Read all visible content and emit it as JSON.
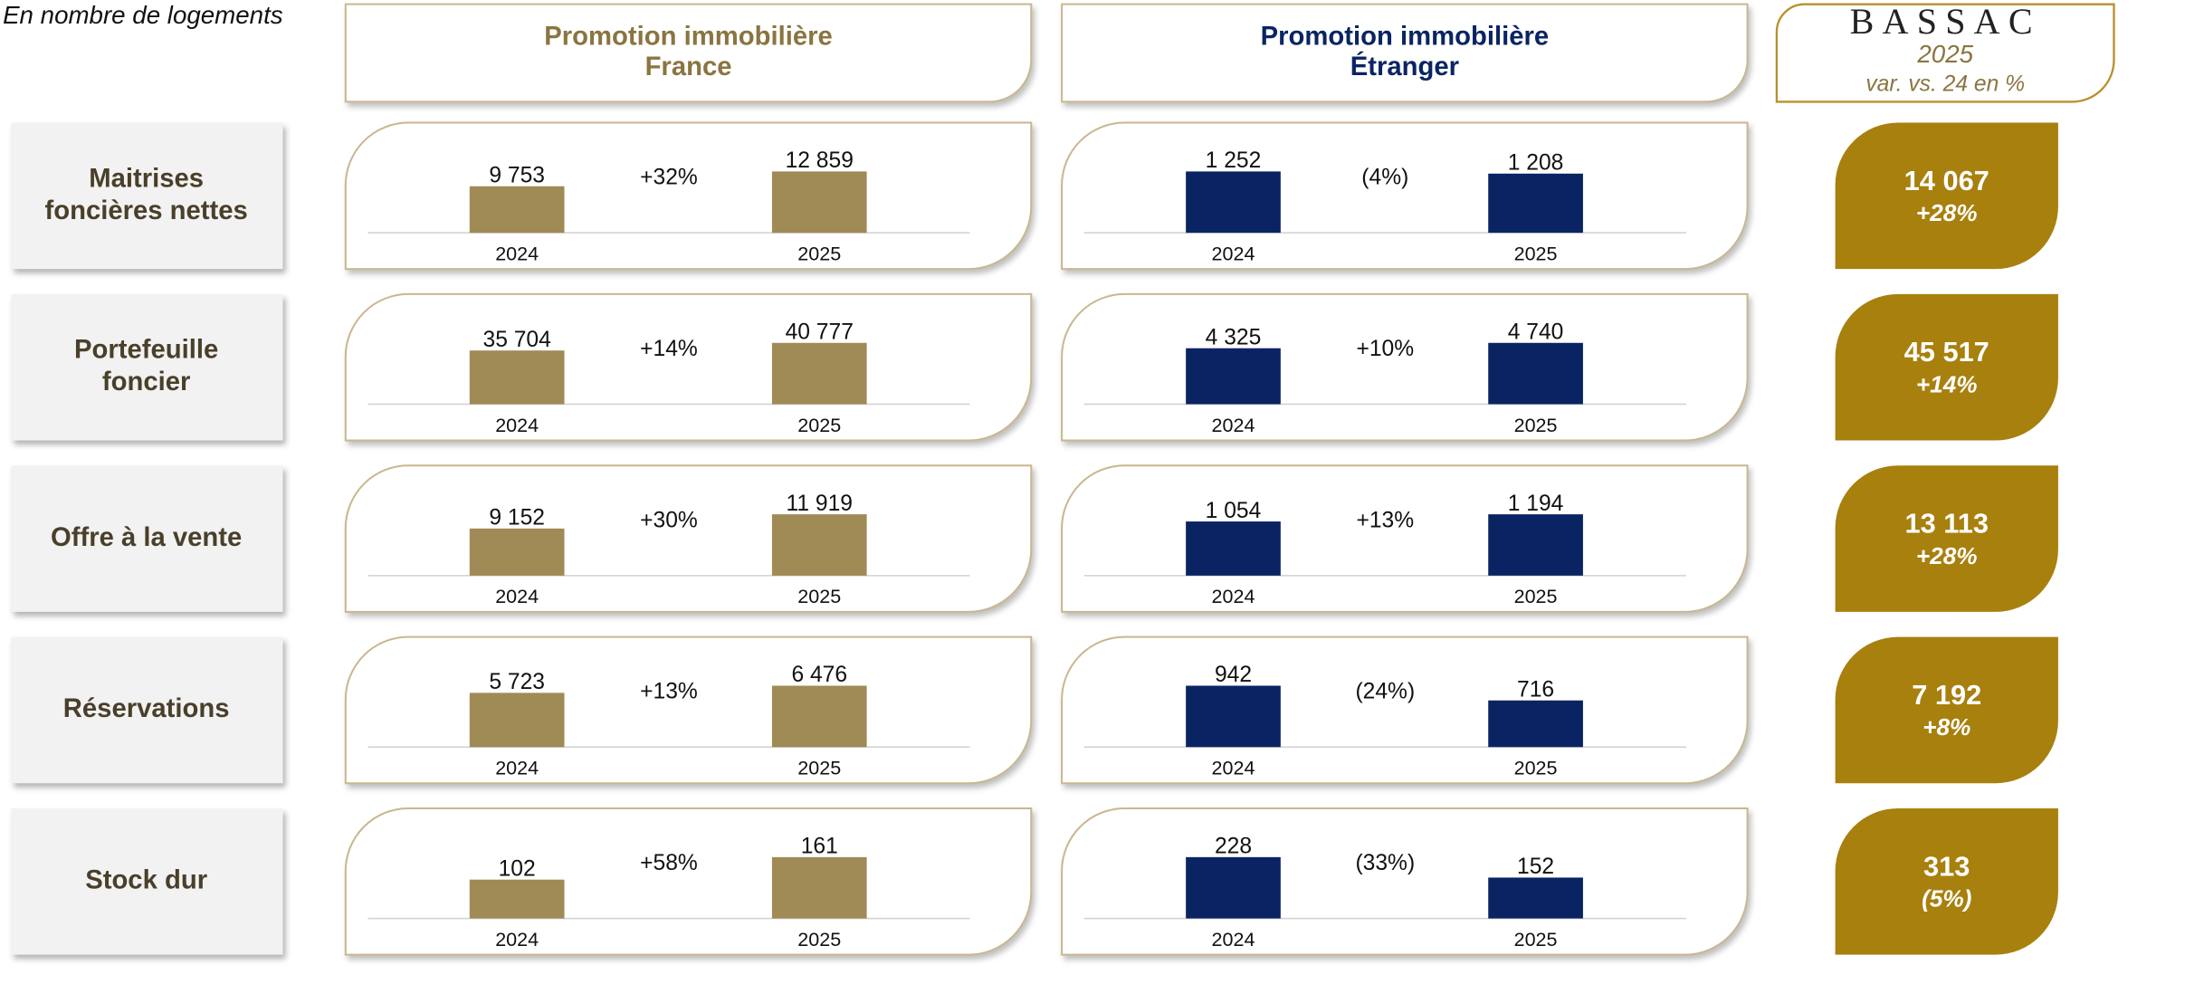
{
  "note": "En nombre de logements",
  "columns": [
    {
      "lines": [
        "Promotion immobilière",
        "France"
      ],
      "color": "#8a7540"
    },
    {
      "lines": [
        "Promotion immobilière",
        "Étranger"
      ],
      "color": "#0a2463"
    }
  ],
  "brand": {
    "name": "BASSAC",
    "year": "2025",
    "subtitle": "var. vs. 24 en %"
  },
  "rows": [
    {
      "lines": [
        "Maitrises",
        "foncières nettes"
      ],
      "total": "14 067",
      "variation": "+28%"
    },
    {
      "lines": [
        "Portefeuille",
        "foncier"
      ],
      "total": "45 517",
      "variation": "+14%"
    },
    {
      "lines": [
        "Offre à la vente"
      ],
      "total": "13 113",
      "variation": "+28%"
    },
    {
      "lines": [
        "Réservations"
      ],
      "total": "7 192",
      "variation": "+8%"
    },
    {
      "lines": [
        "Stock dur"
      ],
      "total": "313",
      "variation": "(5%)"
    }
  ],
  "chart_data": [
    {
      "type": "bar",
      "categories": [
        "2024",
        "2025"
      ],
      "values": [
        9753,
        12859
      ],
      "value_labels": [
        "9 753",
        "12 859"
      ],
      "annotation": "+32%",
      "color": "#a08a55"
    },
    {
      "type": "bar",
      "categories": [
        "2024",
        "2025"
      ],
      "values": [
        1252,
        1208
      ],
      "value_labels": [
        "1 252",
        "1 208"
      ],
      "annotation": "(4%)",
      "color": "#0a2463"
    },
    {
      "type": "bar",
      "categories": [
        "2024",
        "2025"
      ],
      "values": [
        35704,
        40777
      ],
      "value_labels": [
        "35 704",
        "40 777"
      ],
      "annotation": "+14%",
      "color": "#a08a55"
    },
    {
      "type": "bar",
      "categories": [
        "2024",
        "2025"
      ],
      "values": [
        4325,
        4740
      ],
      "value_labels": [
        "4 325",
        "4 740"
      ],
      "annotation": "+10%",
      "color": "#0a2463"
    },
    {
      "type": "bar",
      "categories": [
        "2024",
        "2025"
      ],
      "values": [
        9152,
        11919
      ],
      "value_labels": [
        "9 152",
        "11 919"
      ],
      "annotation": "+30%",
      "color": "#a08a55"
    },
    {
      "type": "bar",
      "categories": [
        "2024",
        "2025"
      ],
      "values": [
        1054,
        1194
      ],
      "value_labels": [
        "1 054",
        "1 194"
      ],
      "annotation": "+13%",
      "color": "#0a2463"
    },
    {
      "type": "bar",
      "categories": [
        "2024",
        "2025"
      ],
      "values": [
        5723,
        6476
      ],
      "value_labels": [
        "5 723",
        "6 476"
      ],
      "annotation": "+13%",
      "color": "#a08a55"
    },
    {
      "type": "bar",
      "categories": [
        "2024",
        "2025"
      ],
      "values": [
        942,
        716
      ],
      "value_labels": [
        "942",
        "716"
      ],
      "annotation": "(24%)",
      "color": "#0a2463"
    },
    {
      "type": "bar",
      "categories": [
        "2024",
        "2025"
      ],
      "values": [
        102,
        161
      ],
      "value_labels": [
        "102",
        "161"
      ],
      "annotation": "+58%",
      "color": "#a08a55"
    },
    {
      "type": "bar",
      "categories": [
        "2024",
        "2025"
      ],
      "values": [
        228,
        152
      ],
      "value_labels": [
        "228",
        "152"
      ],
      "annotation": "(33%)",
      "color": "#0a2463"
    }
  ]
}
